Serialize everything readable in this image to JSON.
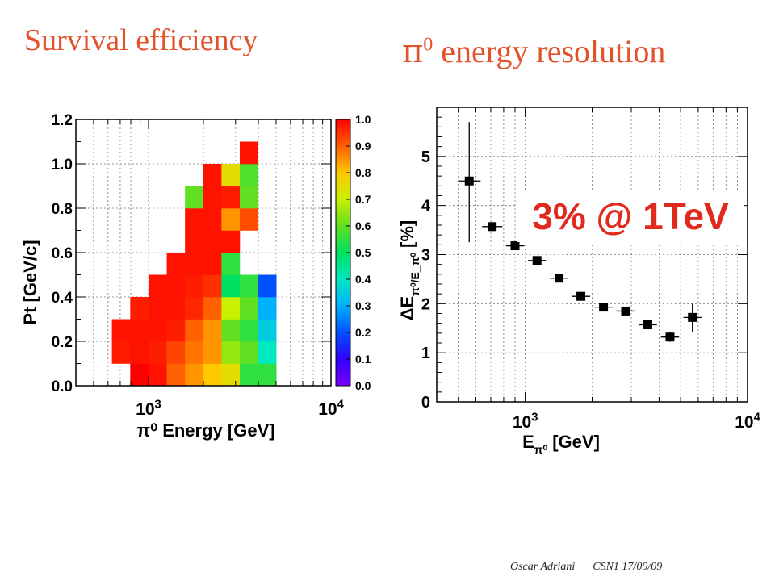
{
  "slide": {
    "title_left": "Survival efficiency",
    "title_right_symbol": "π",
    "title_right_sup": "0",
    "title_right_text": " energy resolution",
    "callout": "3% @ 1TeV",
    "footer_author": "Oscar Adriani",
    "footer_event": "CSN1 17/09/09"
  },
  "chart_data": [
    {
      "type": "heatmap",
      "title": "Survival efficiency",
      "xlabel": "π⁰ Energy [GeV]",
      "ylabel": "Pt [GeV/c]",
      "xscale": "log",
      "xlim": [
        400,
        10000
      ],
      "ylim": [
        0.0,
        1.2
      ],
      "x_tick_values": [
        1000,
        10000
      ],
      "x_tick_labels": [
        "10³",
        "10⁴"
      ],
      "y_tick_labels": [
        "0.0",
        "0.2",
        "0.4",
        "0.6",
        "0.8",
        "1.0",
        "1.2"
      ],
      "grid": true,
      "colorbar": {
        "range": [
          0.0,
          1.0
        ],
        "tick_labels": [
          "0.0",
          "0.1",
          "0.2",
          "0.3",
          "0.4",
          "0.5",
          "0.6",
          "0.7",
          "0.8",
          "0.9",
          "1.0"
        ]
      },
      "x_bin_edges": [
        630,
        794,
        1000,
        1259,
        1585,
        1995,
        2512,
        3162,
        3981,
        5012,
        6310
      ],
      "pt_bin_width": 0.1,
      "rows": [
        {
          "pt_low": 0.0,
          "values": [
            null,
            1.0,
            0.98,
            0.9,
            0.85,
            0.8,
            0.75,
            0.55,
            0.55,
            null
          ]
        },
        {
          "pt_low": 0.1,
          "values": [
            0.97,
            0.98,
            0.97,
            0.93,
            0.88,
            0.85,
            0.65,
            0.6,
            0.4,
            null
          ]
        },
        {
          "pt_low": 0.2,
          "values": [
            0.98,
            0.98,
            0.98,
            0.97,
            0.9,
            0.85,
            0.6,
            0.55,
            0.35,
            null
          ]
        },
        {
          "pt_low": 0.3,
          "values": [
            null,
            0.97,
            0.98,
            0.98,
            0.96,
            0.9,
            0.7,
            0.6,
            0.3,
            null
          ]
        },
        {
          "pt_low": 0.4,
          "values": [
            null,
            null,
            0.98,
            0.98,
            0.97,
            0.95,
            0.5,
            0.55,
            0.2,
            null
          ]
        },
        {
          "pt_low": 0.5,
          "values": [
            null,
            null,
            null,
            0.98,
            0.98,
            0.98,
            0.55,
            null,
            null,
            null
          ]
        },
        {
          "pt_low": 0.6,
          "values": [
            null,
            null,
            null,
            null,
            0.98,
            0.98,
            0.98,
            null,
            null,
            null
          ]
        },
        {
          "pt_low": 0.7,
          "values": [
            null,
            null,
            null,
            null,
            0.98,
            0.98,
            0.85,
            0.92,
            null,
            null
          ]
        },
        {
          "pt_low": 0.8,
          "values": [
            null,
            null,
            null,
            null,
            0.6,
            0.98,
            0.97,
            0.6,
            null,
            null
          ]
        },
        {
          "pt_low": 0.9,
          "values": [
            null,
            null,
            null,
            null,
            null,
            0.98,
            0.75,
            0.58,
            null,
            null
          ]
        },
        {
          "pt_low": 1.0,
          "values": [
            null,
            null,
            null,
            null,
            null,
            null,
            null,
            0.98,
            null,
            null
          ]
        }
      ]
    },
    {
      "type": "scatter",
      "title": "π⁰ energy resolution",
      "xlabel": "E_π⁰ [GeV]",
      "ylabel": "ΔE_π⁰/E_π⁰ [%]",
      "xscale": "log",
      "xlim": [
        400,
        10000
      ],
      "ylim": [
        0,
        6
      ],
      "x_tick_values": [
        1000,
        10000
      ],
      "x_tick_labels": [
        "10³",
        "10⁴"
      ],
      "y_tick_labels": [
        "0",
        "1",
        "2",
        "3",
        "4",
        "5"
      ],
      "grid": true,
      "annotation": "3% @ 1TeV",
      "points": [
        {
          "x": 560,
          "y": 4.5,
          "x_err": [
            60,
            70
          ],
          "y_err": [
            1.25,
            1.2
          ]
        },
        {
          "x": 710,
          "y": 3.57,
          "x_err": [
            70,
            80
          ],
          "y_err": [
            0.1,
            0.1
          ]
        },
        {
          "x": 900,
          "y": 3.18,
          "x_err": [
            80,
            90
          ],
          "y_err": [
            0.05,
            0.05
          ]
        },
        {
          "x": 1130,
          "y": 2.88,
          "x_err": [
            100,
            110
          ],
          "y_err": [
            0.05,
            0.05
          ]
        },
        {
          "x": 1420,
          "y": 2.52,
          "x_err": [
            130,
            140
          ],
          "y_err": [
            0.05,
            0.05
          ]
        },
        {
          "x": 1780,
          "y": 2.15,
          "x_err": [
            160,
            180
          ],
          "y_err": [
            0.05,
            0.05
          ]
        },
        {
          "x": 2250,
          "y": 1.93,
          "x_err": [
            200,
            230
          ],
          "y_err": [
            0.05,
            0.05
          ]
        },
        {
          "x": 2830,
          "y": 1.85,
          "x_err": [
            260,
            290
          ],
          "y_err": [
            0.07,
            0.07
          ]
        },
        {
          "x": 3560,
          "y": 1.57,
          "x_err": [
            320,
            350
          ],
          "y_err": [
            0.08,
            0.08
          ]
        },
        {
          "x": 4480,
          "y": 1.32,
          "x_err": [
            400,
            440
          ],
          "y_err": [
            0.1,
            0.1
          ]
        },
        {
          "x": 5650,
          "y": 1.72,
          "x_err": [
            500,
            550
          ],
          "y_err": [
            0.3,
            0.28
          ]
        }
      ]
    }
  ]
}
